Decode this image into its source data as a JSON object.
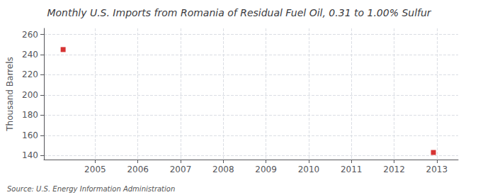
{
  "chart_data": {
    "type": "scatter",
    "title": "Monthly U.S. Imports from Romania of Residual Fuel Oil, 0.31 to 1.00% Sulfur",
    "ylabel": "Thousand Barrels",
    "source": "Source: U.S. Energy Information Administration",
    "x": [
      2004.25,
      2012.92
    ],
    "values": [
      245,
      143
    ],
    "color": "#cc0000",
    "marker": "square",
    "xlim": [
      2003.8,
      2013.5
    ],
    "ylim": [
      136,
      266
    ],
    "xticks": [
      2005,
      2006,
      2007,
      2008,
      2009,
      2010,
      2011,
      2012,
      2013
    ],
    "yticks": [
      140,
      160,
      180,
      200,
      220,
      240,
      260
    ],
    "grid": true
  }
}
